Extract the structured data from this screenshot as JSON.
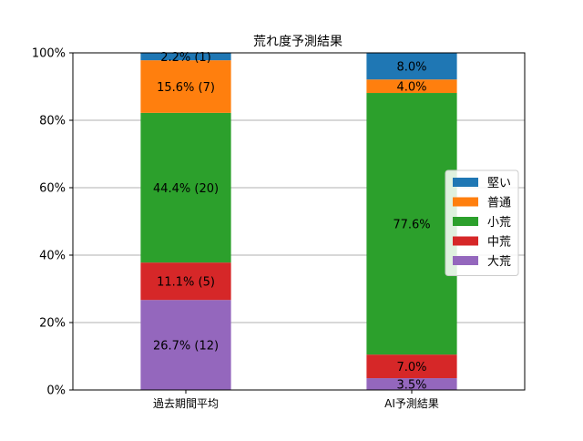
{
  "chart_data": {
    "type": "bar",
    "stacked": true,
    "title": "荒れ度予測結果",
    "xlabel": "",
    "ylabel": "",
    "ylim": [
      0,
      100
    ],
    "y_unit": "%",
    "yticks": [
      "0%",
      "20%",
      "40%",
      "60%",
      "80%",
      "100%"
    ],
    "grid": "horizontal",
    "legend_position": "center-right",
    "categories": [
      "過去期間平均",
      "AI予測結果"
    ],
    "series": [
      {
        "name": "大荒",
        "color": "#9467bd",
        "values": [
          26.7,
          3.5
        ],
        "labels": [
          "26.7% (12)",
          "3.5%"
        ]
      },
      {
        "name": "中荒",
        "color": "#d62728",
        "values": [
          11.1,
          7.0
        ],
        "labels": [
          "11.1% (5)",
          "7.0%"
        ]
      },
      {
        "name": "小荒",
        "color": "#2ca02c",
        "values": [
          44.4,
          77.6
        ],
        "labels": [
          "44.4% (20)",
          "77.6%"
        ]
      },
      {
        "name": "普通",
        "color": "#ff7f0e",
        "values": [
          15.6,
          4.0
        ],
        "labels": [
          "15.6% (7)",
          "4.0%"
        ]
      },
      {
        "name": "堅い",
        "color": "#1f77b4",
        "values": [
          2.2,
          8.0
        ],
        "labels": [
          "2.2% (1)",
          "8.0%"
        ]
      }
    ],
    "legend_order": [
      "堅い",
      "普通",
      "小荒",
      "中荒",
      "大荒"
    ]
  }
}
